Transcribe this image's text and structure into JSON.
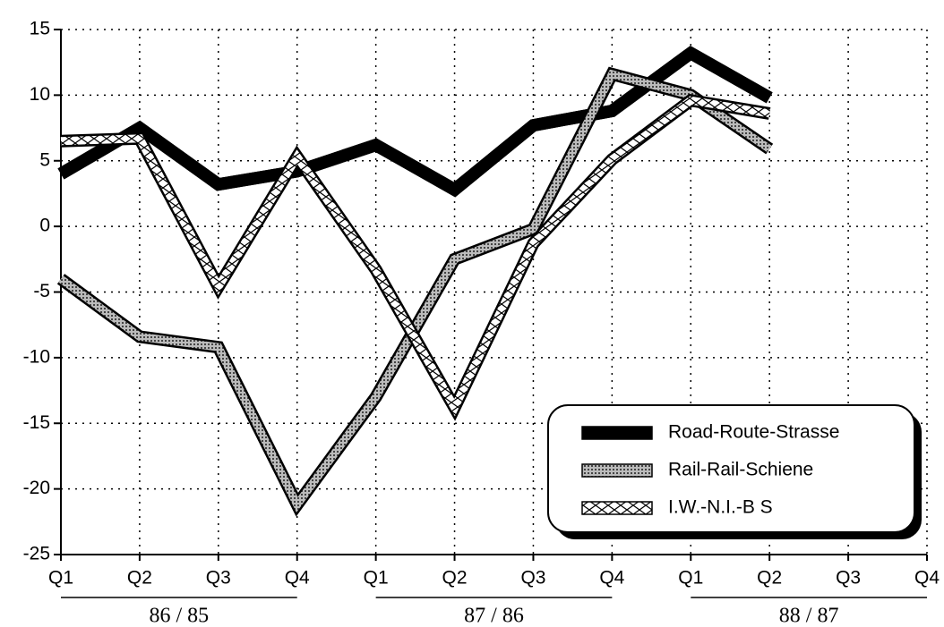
{
  "chart_data": {
    "type": "line",
    "categories": [
      "Q1",
      "Q2",
      "Q3",
      "Q4",
      "Q1",
      "Q2",
      "Q3",
      "Q4",
      "Q1",
      "Q2",
      "Q3",
      "Q4"
    ],
    "groups": [
      "86 / 85",
      "87 / 86",
      "88 / 87"
    ],
    "ylim": [
      -25,
      15
    ],
    "yticks": [
      -25,
      -20,
      -15,
      -10,
      -5,
      0,
      5,
      10,
      15
    ],
    "grid": true,
    "legend": "lower right",
    "series": [
      {
        "name": "Road-Route-Strasse",
        "color": "#000000",
        "values": [
          4,
          7.5,
          3.2,
          4.2,
          6.2,
          2.8,
          7.7,
          8.8,
          13.2,
          9.8,
          null,
          null
        ]
      },
      {
        "name": "Rail-Rail-Schiene",
        "color": "#8c8c8c",
        "values": [
          -4,
          -8.4,
          -9.2,
          -21.2,
          -13,
          -2.5,
          -0.2,
          11.6,
          10,
          5.9,
          null,
          null
        ]
      },
      {
        "name": "I.W.-N.I.-B S",
        "color": "#ffffff",
        "values": [
          6.5,
          6.7,
          -4.6,
          5.3,
          -3.3,
          -13.8,
          -1.3,
          5.1,
          9.6,
          8.6,
          null,
          null
        ]
      }
    ]
  }
}
